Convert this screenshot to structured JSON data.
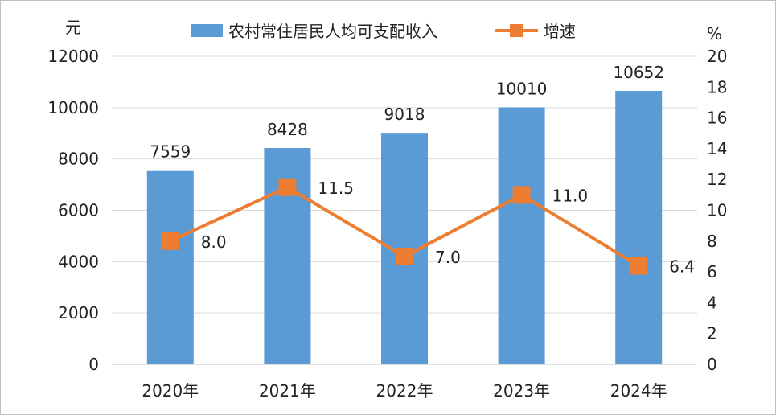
{
  "chart_data": {
    "type": "bar",
    "categories": [
      "2020年",
      "2021年",
      "2022年",
      "2023年",
      "2024年"
    ],
    "series": [
      {
        "name": "农村常住居民人均可支配收入",
        "type": "bar",
        "axis": "left",
        "values": [
          7559,
          8428,
          9018,
          10010,
          10652
        ],
        "color": "#5b9bd5"
      },
      {
        "name": "增速",
        "type": "line",
        "axis": "right",
        "values": [
          8.0,
          11.5,
          7.0,
          11.0,
          6.4
        ],
        "color": "#ed7d31"
      }
    ],
    "value_labels": {
      "bars": [
        "7559",
        "8428",
        "9018",
        "10010",
        "10652"
      ],
      "line": [
        "8.0",
        "11.5",
        "7.0",
        "11.0",
        "6.4"
      ]
    },
    "left_axis": {
      "unit": "元",
      "min": 0,
      "max": 12000,
      "step": 2000,
      "ticks": [
        "0",
        "2000",
        "4000",
        "6000",
        "8000",
        "10000",
        "12000"
      ]
    },
    "right_axis": {
      "unit": "%",
      "min": 0,
      "max": 20,
      "step": 2,
      "ticks": [
        "0",
        "2",
        "4",
        "6",
        "8",
        "10",
        "12",
        "14",
        "16",
        "18",
        "20"
      ]
    },
    "grid": true,
    "legend": "top"
  }
}
